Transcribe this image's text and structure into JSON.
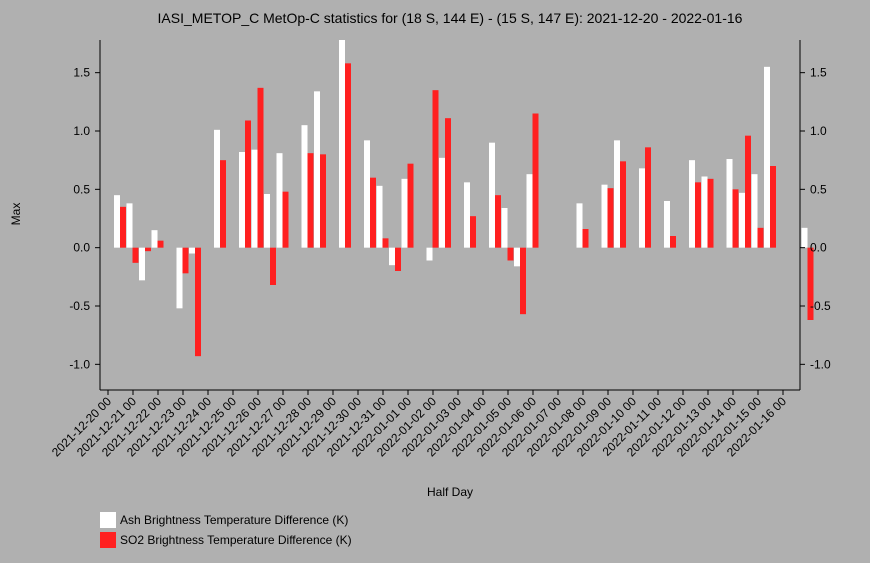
{
  "chart_data": {
    "type": "bar",
    "title": "IASI_METOP_C MetOp-C statistics for (18 S, 144 E) - (15 S, 147 E): 2021-12-20 - 2022-01-16",
    "xlabel": "Half Day",
    "ylabel": "Max",
    "ylim": [
      -1.22,
      1.78
    ],
    "yticks": [
      -1.0,
      -0.5,
      0.0,
      0.5,
      1.0,
      1.5
    ],
    "ytick_labels": [
      "-1.0",
      "-0.5",
      "0.0",
      "0.5",
      "1.0",
      "1.5"
    ],
    "x_tick_labels": [
      "2021-12-20 00",
      "2021-12-21 00",
      "2021-12-22 00",
      "2021-12-23 00",
      "2021-12-24 00",
      "2021-12-25 00",
      "2021-12-26 00",
      "2021-12-27 00",
      "2021-12-28 00",
      "2021-12-29 00",
      "2021-12-30 00",
      "2021-12-31 00",
      "2022-01-01 00",
      "2022-01-02 00",
      "2022-01-03 00",
      "2022-01-04 00",
      "2022-01-05 00",
      "2022-01-06 00",
      "2022-01-07 00",
      "2022-01-08 00",
      "2022-01-09 00",
      "2022-01-10 00",
      "2022-01-11 00",
      "2022-01-12 00",
      "2022-01-13 00",
      "2022-01-14 00",
      "2022-01-15 00",
      "2022-01-16 00"
    ],
    "legend_position": "bottom-left",
    "series": [
      {
        "name": "Ash Brightness Temperature Difference (K)",
        "color": "#ffffff",
        "values": [
          0.45,
          0.38,
          -0.28,
          0.15,
          null,
          -0.52,
          -0.05,
          null,
          1.01,
          null,
          0.82,
          0.84,
          0.46,
          0.81,
          null,
          1.05,
          1.34,
          null,
          1.78,
          null,
          0.92,
          0.53,
          -0.15,
          0.59,
          null,
          -0.11,
          0.77,
          null,
          0.56,
          null,
          0.9,
          0.34,
          -0.16,
          0.63,
          null,
          null,
          null,
          0.38,
          null,
          0.54,
          0.92,
          null,
          0.68,
          null,
          0.4,
          null,
          0.75,
          0.61,
          null,
          0.76,
          0.47,
          0.63,
          1.55,
          null,
          null,
          0.17
        ]
      },
      {
        "name": "SO2 Brightness Temperature Difference (K)",
        "color": "#ff2020",
        "values": [
          0.35,
          -0.13,
          -0.03,
          0.06,
          null,
          -0.22,
          -0.93,
          null,
          0.75,
          null,
          1.09,
          1.37,
          -0.32,
          0.48,
          null,
          0.81,
          0.8,
          null,
          1.58,
          null,
          0.6,
          0.08,
          -0.2,
          0.72,
          null,
          1.35,
          1.11,
          null,
          0.27,
          null,
          0.45,
          -0.11,
          -0.57,
          1.15,
          null,
          null,
          null,
          0.16,
          null,
          0.51,
          0.74,
          null,
          0.86,
          null,
          0.1,
          null,
          0.56,
          0.59,
          null,
          0.5,
          0.96,
          0.17,
          0.7,
          null,
          null,
          -0.62
        ]
      }
    ]
  }
}
